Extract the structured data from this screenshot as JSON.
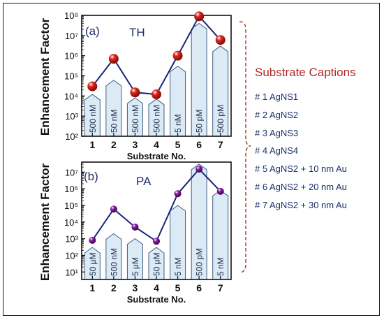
{
  "captions": {
    "title": "Substrate Captions",
    "items": [
      "# 1 AgNS1",
      "# 2 AgNS2",
      "# 3 AgNS3",
      "# 4 AgNS4",
      "# 5 AgNS2 + 10 nm Au",
      "# 6 AgNS2 + 20 nm Au",
      "# 7 AgNS2 + 30 nm Au"
    ]
  },
  "colors": {
    "line": "#1b237a",
    "marker_a": "#e0271d",
    "marker_b": "#8a1ba3",
    "bar_fill": "#dceaf6",
    "bar_stroke": "#3d5e86",
    "bracket": "#a04a30",
    "panel_label": "#1f2f66"
  },
  "chart_data": [
    {
      "type": "bar",
      "panel_label": "(a)",
      "title": "TH",
      "xlabel": "Substrate No.",
      "ylabel": "Enhancement Factor",
      "yscale": "log",
      "ylim": [
        100,
        100000000
      ],
      "yticks": [
        "10²",
        "10³",
        "10⁴",
        "10⁵",
        "10⁶",
        "10⁷",
        "10⁸"
      ],
      "categories": [
        "1",
        "2",
        "3",
        "4",
        "5",
        "6",
        "7"
      ],
      "bar_labels": [
        "500 nM",
        "50 nM",
        "500 nM",
        "500 nM",
        "5 nM",
        "50 pM",
        "500 pM"
      ],
      "values": [
        30000,
        700000,
        15000,
        12000,
        1000000,
        90000000,
        6000000
      ],
      "bar_tops": [
        12000,
        60000,
        8000,
        7000,
        300000,
        40000000,
        3000000
      ]
    },
    {
      "type": "bar",
      "panel_label": "(b)",
      "title": "PA",
      "xlabel": "Substrate No.",
      "ylabel": "Enhancement Factor",
      "yscale": "log",
      "ylim": [
        1,
        50000000
      ],
      "yticks": [
        "10¹",
        "10²",
        "10³",
        "10⁴",
        "10⁵",
        "10⁶",
        "10⁷"
      ],
      "categories": [
        "1",
        "2",
        "3",
        "4",
        "5",
        "6",
        "7"
      ],
      "bar_labels": [
        "50 μM",
        "500 nM",
        "5 μM",
        "50 μM",
        "5 nM",
        "500 pM",
        "5 nM"
      ],
      "values": [
        800,
        60000,
        5000,
        700,
        500000,
        15000000,
        700000
      ],
      "bar_tops": [
        300,
        2000,
        1000,
        300,
        100000,
        30000000,
        800000
      ]
    }
  ]
}
